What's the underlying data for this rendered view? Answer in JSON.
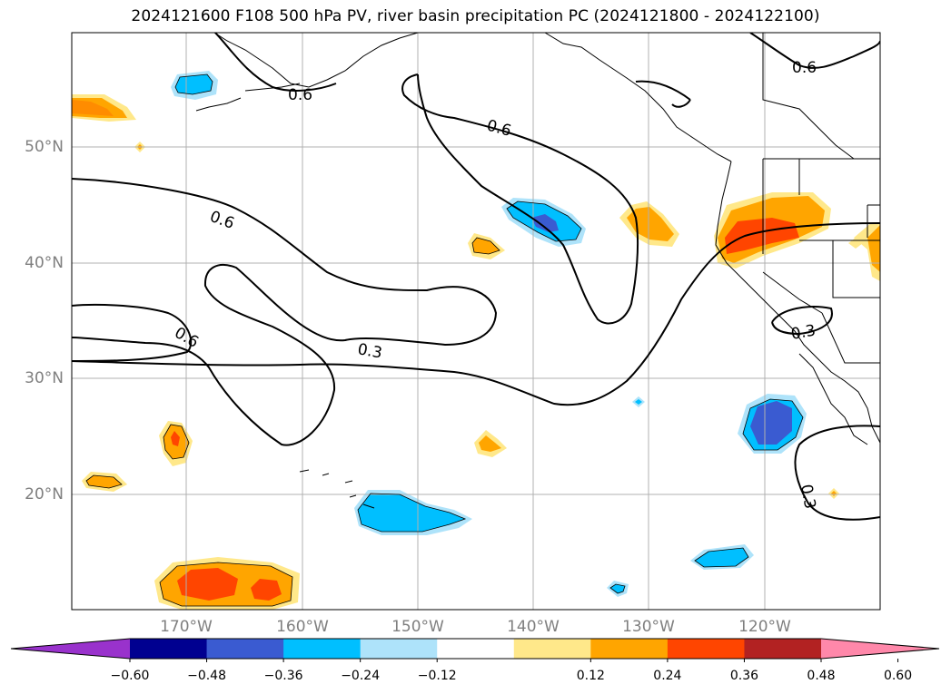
{
  "title": "2024121600 F108 500 hPa PV, river basin precipitation PC (2024121800 - 2024122100)",
  "latitude_labels": [
    "50°N",
    "40°N",
    "30°N",
    "20°N"
  ],
  "longitude_labels": [
    "170°W",
    "160°W",
    "150°W",
    "140°W",
    "130°W",
    "120°W"
  ],
  "contour_labels": [
    "0.6",
    "0.6",
    "0.6",
    "0.6",
    "0.6",
    "0.3",
    "0.3",
    "0.3"
  ],
  "colorbar": {
    "ticks": [
      "−0.60",
      "−0.48",
      "−0.36",
      "−0.24",
      "−0.12",
      "0.12",
      "0.24",
      "0.36",
      "0.48",
      "0.60"
    ],
    "colors": [
      "#9932cc",
      "#000090",
      "#3a5bd1",
      "#00bfff",
      "#aee3fa",
      "#ffffff",
      "#ffe88a",
      "#ffa500",
      "#ff4500",
      "#b22222",
      "#ff88aa"
    ]
  }
}
